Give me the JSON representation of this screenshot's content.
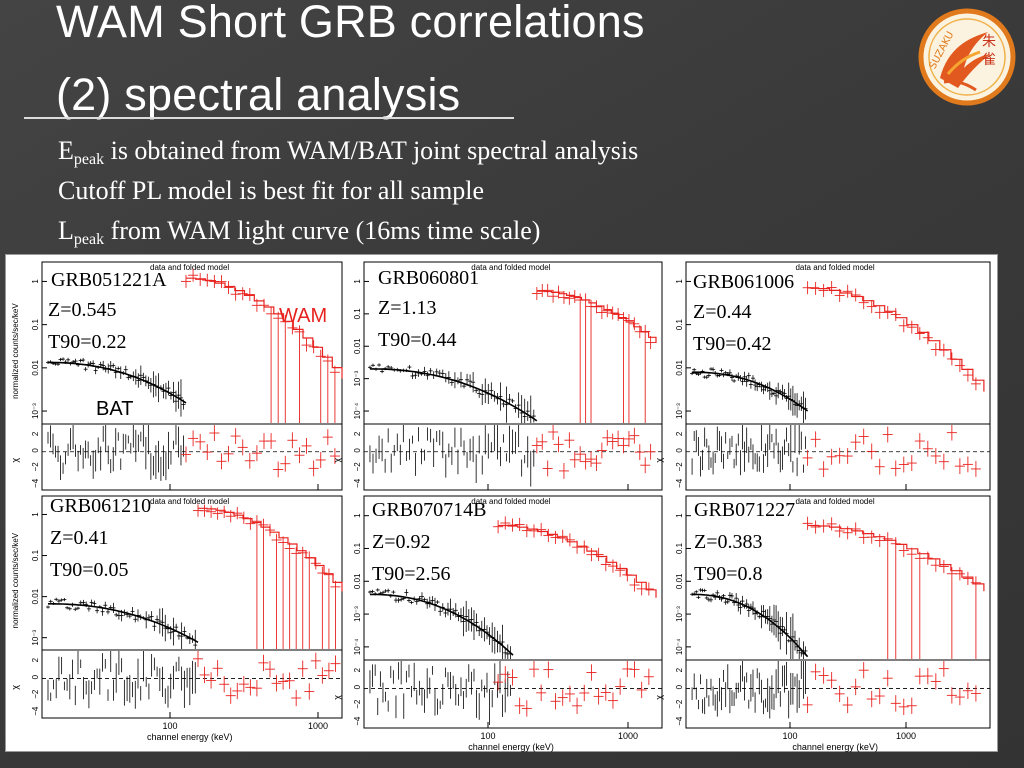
{
  "slide": {
    "title_line1": "WAM Short GRB correlations",
    "title_line2": "(2) spectral analysis",
    "bullets": [
      {
        "main": "E",
        "sub": "peak",
        "rest": " is obtained from WAM/BAT joint spectral analysis"
      },
      {
        "main": "Cutoff  PL model is best fit for all sample",
        "sub": "",
        "rest": ""
      },
      {
        "main": "L",
        "sub": "peak",
        "rest": " from WAM light curve (16ms time scale)"
      }
    ],
    "logo_text": [
      "朱",
      "雀",
      "SUZAKU"
    ],
    "accent_color": "#e8231f",
    "background_color": "#3b3b3b"
  },
  "figure": {
    "plot_title": "data and folded model",
    "ylabel_top": "normalized counts/sec/keV",
    "ylabel_bottom": "χ",
    "xlabel": "channel energy (keV)",
    "x_ticks": [
      "100",
      "1000"
    ],
    "y_ticks_top": [
      "1",
      "0.1",
      "0.01",
      "10⁻³"
    ],
    "y_ticks_top_alt": [
      "1",
      "0.1",
      "0.01",
      "10⁻³",
      "10⁻⁴"
    ],
    "y_ticks_bottom": [
      "2",
      "0",
      "−2",
      "−4"
    ],
    "wam_label": "WAM",
    "bat_label": "BAT",
    "wam_color": "#e8231f",
    "bat_color": "#000000",
    "panels": [
      {
        "grb": "GRB051221A",
        "z": "Z=0.545",
        "t90": "T90=0.22"
      },
      {
        "grb": "GRB060801",
        "z": "Z=1.13",
        "t90": "T90=0.44"
      },
      {
        "grb": "GRB061006",
        "z": "Z=0.44",
        "t90": "T90=0.42"
      },
      {
        "grb": "GRB061210",
        "z": "Z=0.41",
        "t90": "T90=0.05"
      },
      {
        "grb": "GRB070714B",
        "z": "Z=0.92",
        "t90": "T90=2.56"
      },
      {
        "grb": "GRB071227",
        "z": "Z=0.383",
        "t90": "T90=0.8"
      }
    ]
  }
}
